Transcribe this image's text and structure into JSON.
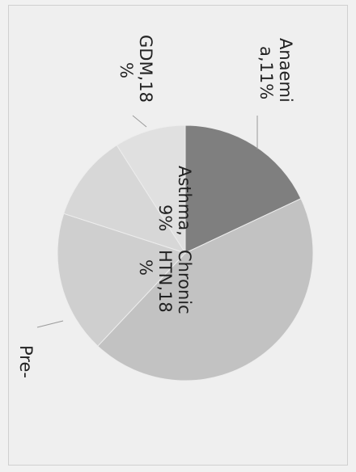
{
  "chart_data": {
    "type": "pie",
    "title": "",
    "slices": [
      {
        "label": "Chronic HTN",
        "display": "Chronic HTN,18 %",
        "value": 18,
        "color": "#7f7f7f"
      },
      {
        "label": "Pre-",
        "display": "Pre-",
        "value": 44,
        "color": "#c2c2c2"
      },
      {
        "label": "GDM",
        "display": "GDM,18 %",
        "value": 18,
        "color": "#cfcfcf"
      },
      {
        "label": "Anaemia",
        "display": "Anaemi a,11%",
        "value": 11,
        "color": "#d7d7d7"
      },
      {
        "label": "Asthma",
        "display": "Asthma, 9%",
        "value": 9,
        "color": "#e0e0e0"
      }
    ],
    "labels": {
      "chronic_line1": "Chronic",
      "chronic_line2": "HTN,18",
      "chronic_line3": "%",
      "asthma_line1": "Asthma,",
      "asthma_line2": "9%",
      "anaemia_line1": "Anaemi",
      "anaemia_line2": "a,11%",
      "gdm_line1": "GDM,18",
      "gdm_line2": "%",
      "pre_line1": "Pre-"
    },
    "legend": "none",
    "grid": false
  }
}
